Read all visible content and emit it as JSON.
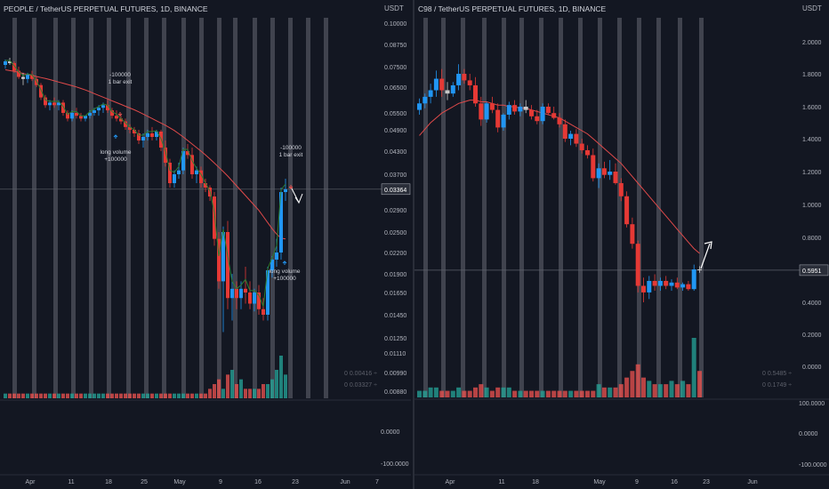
{
  "colors": {
    "background": "#131722",
    "up": "#2196f3",
    "down": "#e53935",
    "neutral": "#c8c8c8",
    "vol_up": "#26a69a",
    "vol_down": "#ef5350",
    "ma": "#e04a4a",
    "fast": "#2e7d32",
    "highlight_band": "#787b86",
    "axis_text": "#b2b5be",
    "price_label_bg": "#2a2e39"
  },
  "chart_data": [
    {
      "type": "candlestick",
      "title": "PEOPLE / TetherUS PERPETUAL FUTURES, 1D, BINANCE",
      "unit": "USDT",
      "price_axis": {
        "ticks": [
          0.1,
          0.0875,
          0.075,
          0.065,
          0.055,
          0.049,
          0.043,
          0.037,
          0.029,
          0.025,
          0.022,
          0.019,
          0.0165,
          0.0145,
          0.0125,
          0.0111,
          0.0099,
          0.0088
        ],
        "tick_labels": [
          "0.10000",
          "0.08750",
          "0.07500",
          "0.06500",
          "0.05500",
          "0.04900",
          "0.04300",
          "0.03700",
          "0.02900",
          "0.02500",
          "0.02200",
          "0.01900",
          "0.01650",
          "0.01450",
          "0.01250",
          "0.01110",
          "0.00990",
          "0.00880"
        ],
        "current_price": 0.03364,
        "current_label": "0.03364"
      },
      "lower_pane": {
        "ticks": [
          0,
          -100
        ],
        "tick_labels": [
          "0.0000",
          "-100.0000"
        ]
      },
      "volume_labels": [
        "0  0.00416  ÷",
        "0  0.03327  ÷"
      ],
      "x_ticks": [
        "Apr",
        "11",
        "18",
        "25",
        "May",
        "9",
        "16",
        "23",
        "Jun",
        "7"
      ],
      "annotations": [
        {
          "text": "-100000",
          "text2": "1 bar exit"
        },
        {
          "text": "long volume",
          "text2": "+100000"
        },
        {
          "text": "-100000",
          "text2": "1 bar exit"
        },
        {
          "text": "long volume",
          "text2": "+100000"
        }
      ],
      "candles_ohlc": [
        [
          0.076,
          0.079,
          0.074,
          0.078
        ],
        [
          0.078,
          0.08,
          0.076,
          0.077
        ],
        [
          0.077,
          0.078,
          0.072,
          0.073
        ],
        [
          0.073,
          0.075,
          0.069,
          0.07
        ],
        [
          0.07,
          0.072,
          0.066,
          0.069
        ],
        [
          0.069,
          0.072,
          0.067,
          0.071
        ],
        [
          0.071,
          0.073,
          0.068,
          0.069
        ],
        [
          0.069,
          0.07,
          0.065,
          0.066
        ],
        [
          0.066,
          0.067,
          0.06,
          0.061
        ],
        [
          0.061,
          0.062,
          0.057,
          0.058
        ],
        [
          0.058,
          0.06,
          0.056,
          0.059
        ],
        [
          0.059,
          0.061,
          0.057,
          0.058
        ],
        [
          0.058,
          0.06,
          0.056,
          0.059
        ],
        [
          0.059,
          0.06,
          0.054,
          0.055
        ],
        [
          0.055,
          0.056,
          0.052,
          0.053
        ],
        [
          0.053,
          0.056,
          0.052,
          0.055
        ],
        [
          0.055,
          0.057,
          0.053,
          0.054
        ],
        [
          0.054,
          0.055,
          0.052,
          0.053
        ],
        [
          0.053,
          0.054,
          0.052,
          0.054
        ],
        [
          0.054,
          0.056,
          0.053,
          0.055
        ],
        [
          0.055,
          0.057,
          0.054,
          0.056
        ],
        [
          0.056,
          0.058,
          0.054,
          0.057
        ],
        [
          0.057,
          0.059,
          0.055,
          0.058
        ],
        [
          0.058,
          0.06,
          0.055,
          0.056
        ],
        [
          0.056,
          0.057,
          0.053,
          0.054
        ],
        [
          0.054,
          0.056,
          0.052,
          0.053
        ],
        [
          0.053,
          0.054,
          0.051,
          0.052
        ],
        [
          0.052,
          0.053,
          0.049,
          0.05
        ],
        [
          0.05,
          0.051,
          0.048,
          0.049
        ],
        [
          0.049,
          0.05,
          0.047,
          0.048
        ],
        [
          0.048,
          0.049,
          0.045,
          0.046
        ],
        [
          0.046,
          0.048,
          0.044,
          0.047
        ],
        [
          0.047,
          0.049,
          0.046,
          0.048
        ],
        [
          0.048,
          0.05,
          0.046,
          0.047
        ],
        [
          0.047,
          0.049,
          0.046,
          0.0485
        ],
        [
          0.0485,
          0.049,
          0.043,
          0.044
        ],
        [
          0.044,
          0.046,
          0.039,
          0.04
        ],
        [
          0.04,
          0.041,
          0.034,
          0.035
        ],
        [
          0.035,
          0.038,
          0.034,
          0.037
        ],
        [
          0.037,
          0.04,
          0.036,
          0.038
        ],
        [
          0.038,
          0.044,
          0.037,
          0.043
        ],
        [
          0.043,
          0.045,
          0.041,
          0.042
        ],
        [
          0.042,
          0.044,
          0.036,
          0.037
        ],
        [
          0.037,
          0.039,
          0.035,
          0.038
        ],
        [
          0.038,
          0.039,
          0.034,
          0.035
        ],
        [
          0.035,
          0.036,
          0.033,
          0.034
        ],
        [
          0.034,
          0.0345,
          0.031,
          0.032
        ],
        [
          0.032,
          0.033,
          0.023,
          0.024
        ],
        [
          0.024,
          0.025,
          0.017,
          0.018
        ],
        [
          0.018,
          0.026,
          0.013,
          0.025
        ],
        [
          0.025,
          0.027,
          0.015,
          0.016
        ],
        [
          0.016,
          0.019,
          0.014,
          0.017
        ],
        [
          0.017,
          0.018,
          0.015,
          0.016
        ],
        [
          0.016,
          0.018,
          0.015,
          0.017
        ],
        [
          0.017,
          0.02,
          0.0155,
          0.0165
        ],
        [
          0.0165,
          0.018,
          0.015,
          0.0155
        ],
        [
          0.0155,
          0.017,
          0.0148,
          0.0165
        ],
        [
          0.0165,
          0.0175,
          0.0145,
          0.015
        ],
        [
          0.015,
          0.016,
          0.014,
          0.0145
        ],
        [
          0.0145,
          0.02,
          0.014,
          0.0195
        ],
        [
          0.0195,
          0.0215,
          0.0185,
          0.021
        ],
        [
          0.021,
          0.024,
          0.02,
          0.022
        ],
        [
          0.022,
          0.034,
          0.021,
          0.033
        ],
        [
          0.033,
          0.036,
          0.031,
          0.0336
        ]
      ],
      "ma": [
        0.0735,
        0.0731,
        0.0727,
        0.0722,
        0.0717,
        0.0712,
        0.0707,
        0.0702,
        0.0697,
        0.0692,
        0.0687,
        0.0681,
        0.0675,
        0.0669,
        0.0663,
        0.0657,
        0.0651,
        0.0645,
        0.0639,
        0.0632,
        0.0625,
        0.0618,
        0.0611,
        0.0604,
        0.0597,
        0.059,
        0.0583,
        0.0576,
        0.0569,
        0.0562,
        0.0554,
        0.0546,
        0.0538,
        0.053,
        0.0522,
        0.0514,
        0.0506,
        0.0497,
        0.0488,
        0.0479,
        0.047,
        0.046,
        0.045,
        0.044,
        0.043,
        0.042,
        0.041,
        0.0399,
        0.0388,
        0.0377,
        0.0366,
        0.0355,
        0.0344,
        0.0333,
        0.0322,
        0.0311,
        0.03,
        0.0289,
        0.0278,
        0.0267,
        0.0256,
        0.0247,
        0.0241,
        0.024
      ],
      "volume": [
        1,
        1,
        1,
        1,
        1,
        1,
        1,
        1,
        1,
        1,
        1,
        1,
        1,
        1,
        1,
        1,
        1,
        1,
        1,
        1,
        1,
        1,
        1,
        1,
        1,
        1,
        1,
        1,
        1,
        1,
        1,
        1,
        1,
        1,
        1,
        1,
        1,
        1,
        1,
        1,
        1,
        1,
        1,
        1,
        1,
        1,
        2,
        3,
        4,
        2,
        5,
        6,
        3,
        4,
        2,
        2,
        2,
        2,
        3,
        3,
        4,
        6,
        9,
        5
      ]
    },
    {
      "type": "candlestick",
      "title": "C98 / TetherUS PERPETUAL FUTURES, 1D, BINANCE",
      "unit": "USDT",
      "price_axis": {
        "ticks": [
          2.0,
          1.8,
          1.6,
          1.4,
          1.2,
          1.0,
          0.8,
          0.6,
          0.4,
          0.2,
          0.0
        ],
        "tick_labels": [
          "2.0000",
          "1.8000",
          "1.6000",
          "1.4000",
          "1.2000",
          "1.0000",
          "0.8000",
          "0.6000",
          "0.4000",
          "0.2000",
          "0.0000"
        ],
        "current_price": 0.5951,
        "current_label": "0.5951"
      },
      "lower_pane": {
        "ticks": [
          100,
          0,
          -100
        ],
        "tick_labels": [
          "100.0000",
          "0.0000",
          "-100.0000"
        ]
      },
      "volume_labels": [
        "0  0.5485  ÷",
        "0  0.1749  ÷"
      ],
      "x_ticks": [
        "Apr",
        "11",
        "18",
        "May",
        "9",
        "16",
        "23",
        "Jun"
      ],
      "candles_ohlc": [
        [
          1.58,
          1.65,
          1.55,
          1.62
        ],
        [
          1.62,
          1.68,
          1.59,
          1.66
        ],
        [
          1.66,
          1.74,
          1.62,
          1.7
        ],
        [
          1.7,
          1.82,
          1.66,
          1.77
        ],
        [
          1.77,
          1.83,
          1.66,
          1.7
        ],
        [
          1.7,
          1.75,
          1.64,
          1.68
        ],
        [
          1.68,
          1.75,
          1.66,
          1.73
        ],
        [
          1.73,
          1.86,
          1.7,
          1.8
        ],
        [
          1.8,
          1.83,
          1.74,
          1.76
        ],
        [
          1.76,
          1.8,
          1.7,
          1.73
        ],
        [
          1.73,
          1.78,
          1.6,
          1.62
        ],
        [
          1.62,
          1.66,
          1.48,
          1.52
        ],
        [
          1.52,
          1.63,
          1.5,
          1.62
        ],
        [
          1.62,
          1.66,
          1.56,
          1.58
        ],
        [
          1.58,
          1.62,
          1.44,
          1.47
        ],
        [
          1.47,
          1.56,
          1.45,
          1.55
        ],
        [
          1.55,
          1.63,
          1.52,
          1.61
        ],
        [
          1.61,
          1.64,
          1.55,
          1.57
        ],
        [
          1.57,
          1.62,
          1.54,
          1.6
        ],
        [
          1.6,
          1.64,
          1.56,
          1.58
        ],
        [
          1.58,
          1.61,
          1.52,
          1.54
        ],
        [
          1.54,
          1.58,
          1.49,
          1.51
        ],
        [
          1.51,
          1.62,
          1.49,
          1.6
        ],
        [
          1.6,
          1.62,
          1.55,
          1.56
        ],
        [
          1.56,
          1.6,
          1.52,
          1.53
        ],
        [
          1.53,
          1.56,
          1.47,
          1.49
        ],
        [
          1.49,
          1.52,
          1.38,
          1.4
        ],
        [
          1.4,
          1.45,
          1.36,
          1.43
        ],
        [
          1.43,
          1.46,
          1.35,
          1.37
        ],
        [
          1.37,
          1.4,
          1.31,
          1.33
        ],
        [
          1.33,
          1.36,
          1.28,
          1.3
        ],
        [
          1.3,
          1.34,
          1.14,
          1.16
        ],
        [
          1.16,
          1.25,
          1.1,
          1.22
        ],
        [
          1.22,
          1.26,
          1.16,
          1.18
        ],
        [
          1.18,
          1.27,
          1.15,
          1.2
        ],
        [
          1.2,
          1.25,
          1.12,
          1.13
        ],
        [
          1.13,
          1.16,
          1.02,
          1.05
        ],
        [
          1.05,
          1.08,
          0.86,
          0.88
        ],
        [
          0.88,
          0.92,
          0.73,
          0.76
        ],
        [
          0.76,
          0.78,
          0.46,
          0.5
        ],
        [
          0.5,
          0.55,
          0.4,
          0.46
        ],
        [
          0.46,
          0.56,
          0.42,
          0.53
        ],
        [
          0.53,
          0.57,
          0.47,
          0.5
        ],
        [
          0.5,
          0.55,
          0.47,
          0.53
        ],
        [
          0.53,
          0.56,
          0.48,
          0.5
        ],
        [
          0.5,
          0.54,
          0.47,
          0.52
        ],
        [
          0.52,
          0.55,
          0.48,
          0.49
        ],
        [
          0.49,
          0.52,
          0.47,
          0.51
        ],
        [
          0.51,
          0.53,
          0.47,
          0.48
        ],
        [
          0.48,
          0.63,
          0.47,
          0.6
        ],
        [
          0.6,
          0.62,
          0.58,
          0.595
        ]
      ],
      "ma": [
        1.42,
        1.46,
        1.5,
        1.53,
        1.56,
        1.58,
        1.6,
        1.62,
        1.63,
        1.64,
        1.64,
        1.63,
        1.63,
        1.62,
        1.61,
        1.61,
        1.6,
        1.6,
        1.59,
        1.59,
        1.58,
        1.57,
        1.56,
        1.55,
        1.54,
        1.53,
        1.51,
        1.49,
        1.47,
        1.45,
        1.43,
        1.4,
        1.37,
        1.34,
        1.31,
        1.28,
        1.25,
        1.21,
        1.17,
        1.13,
        1.09,
        1.05,
        1.01,
        0.97,
        0.93,
        0.89,
        0.85,
        0.81,
        0.77,
        0.73,
        0.7
      ],
      "volume": [
        2,
        2,
        3,
        3,
        2,
        2,
        2,
        3,
        2,
        2,
        3,
        4,
        3,
        2,
        3,
        3,
        3,
        2,
        2,
        2,
        2,
        2,
        2,
        2,
        2,
        2,
        2,
        2,
        2,
        2,
        2,
        2,
        4,
        3,
        3,
        3,
        4,
        6,
        8,
        10,
        6,
        5,
        4,
        4,
        4,
        5,
        4,
        5,
        4,
        18,
        8
      ]
    }
  ]
}
